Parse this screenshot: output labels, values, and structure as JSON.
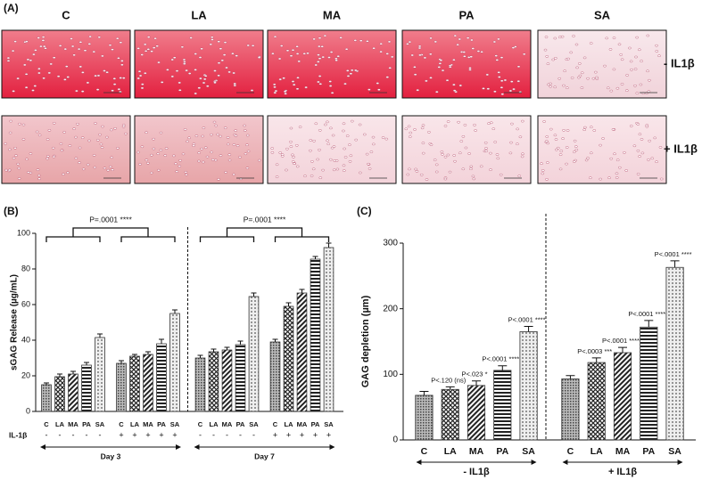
{
  "panel_a": {
    "label": "(A)",
    "columns": [
      "C",
      "LA",
      "MA",
      "PA",
      "SA"
    ],
    "rows": [
      "- IL1β",
      "+ IL1β"
    ]
  },
  "chart_data": [
    {
      "type": "bar",
      "panel_label": "(B)",
      "y_label": "sGAG Release (µg/mL)",
      "row_label": "IL-1β",
      "categories": [
        "C",
        "LA",
        "MA",
        "PA",
        "SA",
        "C",
        "LA",
        "MA",
        "PA",
        "SA",
        "C",
        "LA",
        "MA",
        "PA",
        "SA",
        "C",
        "LA",
        "MA",
        "PA",
        "SA"
      ],
      "il1b": [
        "-",
        "-",
        "-",
        "-",
        "-",
        "+",
        "+",
        "+",
        "+",
        "+",
        "-",
        "-",
        "-",
        "-",
        "-",
        "+",
        "+",
        "+",
        "+",
        "+"
      ],
      "values": [
        15,
        19.5,
        21,
        26,
        41.5,
        27,
        31,
        32,
        38,
        55,
        30,
        33.5,
        34.5,
        37.5,
        64.5,
        39,
        59,
        66.5,
        85.5,
        92
      ],
      "errors": [
        1,
        1.5,
        1.5,
        1.5,
        2,
        1.5,
        1,
        1.5,
        2.5,
        2,
        1.5,
        1.5,
        1.5,
        2,
        2,
        1.5,
        2,
        2,
        1.5,
        2.5
      ],
      "groups": [
        {
          "label": "Day 3",
          "annotation": "P=.0001 ****"
        },
        {
          "label": "Day 7",
          "annotation": "P=.0001 ****"
        }
      ],
      "ylim": [
        0,
        100
      ],
      "yticks": [
        0,
        20,
        40,
        60,
        80,
        100
      ],
      "color": "#333333"
    },
    {
      "type": "bar",
      "panel_label": "(C)",
      "y_label": "GAG depletion (µm)",
      "categories": [
        "C",
        "LA",
        "MA",
        "PA",
        "SA",
        "C",
        "LA",
        "MA",
        "PA",
        "SA"
      ],
      "values": [
        68,
        77,
        83,
        106,
        165,
        93,
        118,
        133,
        172,
        263
      ],
      "errors": [
        6,
        4,
        7,
        7,
        8,
        5,
        7,
        8,
        10,
        10
      ],
      "annotations": [
        null,
        "P<.120 (ns)",
        "P<.023 *",
        "P<.0001 ****",
        "P<.0001 ****",
        null,
        "P<.0003 ***",
        "P<.0001 ****",
        "P<.0001 ****",
        "P<.0001 ****"
      ],
      "groups": [
        {
          "label": "- IL1β"
        },
        {
          "label": "+ IL1β"
        }
      ],
      "ylim": [
        0,
        300
      ],
      "yticks": [
        0,
        100,
        200,
        300
      ],
      "color": "#333333"
    }
  ]
}
